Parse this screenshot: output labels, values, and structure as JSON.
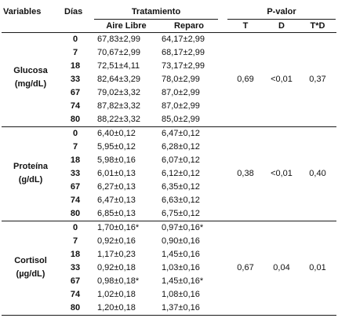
{
  "headers": {
    "variables": "Variables",
    "dias": "Días",
    "tratamiento": "Tratamiento",
    "aire_libre": "Aire Libre",
    "reparo": "Reparo",
    "p_valor": "P-valor",
    "t": "T",
    "d": "D",
    "td": "T*D"
  },
  "groups": [
    {
      "label_line1": "Glucosa",
      "label_line2": "(mg/dL)",
      "p_t": "0,69",
      "p_d": "<0,01",
      "p_td": "0,37",
      "rows": [
        {
          "dia": "0",
          "aire": "67,83±2,99",
          "reparo": "64,17±2,99"
        },
        {
          "dia": "7",
          "aire": "70,67±2,99",
          "reparo": "68,17±2,99"
        },
        {
          "dia": "18",
          "aire": "72,51±4,11",
          "reparo": "73,17±2,99"
        },
        {
          "dia": "33",
          "aire": "82,64±3,29",
          "reparo": "78,0±2,99"
        },
        {
          "dia": "67",
          "aire": "79,02±3,32",
          "reparo": "87,0±2,99"
        },
        {
          "dia": "74",
          "aire": "87,82±3,32",
          "reparo": "87,0±2,99"
        },
        {
          "dia": "80",
          "aire": "88,22±3,32",
          "reparo": "85,0±2,99"
        }
      ]
    },
    {
      "label_line1": "Proteína",
      "label_line2": "(g/dL)",
      "p_t": "0,38",
      "p_d": "<0,01",
      "p_td": "0,40",
      "rows": [
        {
          "dia": "0",
          "aire": "6,40±0,12",
          "reparo": "6,47±0,12"
        },
        {
          "dia": "7",
          "aire": "5,95±0,12",
          "reparo": "6,28±0,12"
        },
        {
          "dia": "18",
          "aire": "5,98±0,16",
          "reparo": "6,07±0,12"
        },
        {
          "dia": "33",
          "aire": "6,01±0,13",
          "reparo": "6,12±0,12"
        },
        {
          "dia": "67",
          "aire": "6,27±0,13",
          "reparo": "6,35±0,12"
        },
        {
          "dia": "74",
          "aire": "6,47±0,13",
          "reparo": "6,63±0,12"
        },
        {
          "dia": "80",
          "aire": "6,85±0,13",
          "reparo": "6,75±0,12"
        }
      ]
    },
    {
      "label_line1": "Cortisol",
      "label_line2": "(µg/dL)",
      "p_t": "0,67",
      "p_d": "0,04",
      "p_td": "0,01",
      "rows": [
        {
          "dia": "0",
          "aire": "1,70±0,16*",
          "reparo": "0,97±0,16*"
        },
        {
          "dia": "7",
          "aire": "0,92±0,16",
          "reparo": "0,90±0,16"
        },
        {
          "dia": "18",
          "aire": "1,17±0,23",
          "reparo": "1,45±0,16"
        },
        {
          "dia": "33",
          "aire": "0,92±0,18",
          "reparo": "1,03±0,16"
        },
        {
          "dia": "67",
          "aire": "0,98±0,18*",
          "reparo": "1,45±0,16*"
        },
        {
          "dia": "74",
          "aire": "1,02±0,18",
          "reparo": "1,08±0,16"
        },
        {
          "dia": "80",
          "aire": "1,20±0,18",
          "reparo": "1,37±0,16"
        }
      ]
    }
  ]
}
